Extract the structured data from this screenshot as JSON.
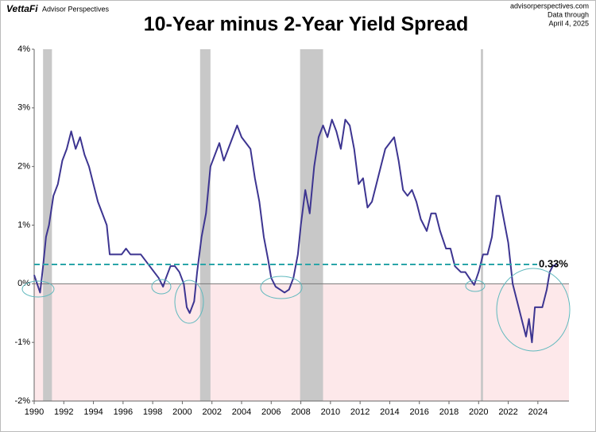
{
  "header": {
    "logo": "VettaFi",
    "brand": "Advisor Perspectives",
    "site": "advisorperspectives.com",
    "note": "Data through",
    "date": "April 4, 2025"
  },
  "chart_data": {
    "type": "line",
    "title": "10-Year minus 2-Year Yield Spread",
    "color": "#3d3591",
    "xlim": [
      1990,
      2026.1
    ],
    "ylim": [
      -2,
      4
    ],
    "xticks": [
      1990,
      1992,
      1994,
      1996,
      1998,
      2000,
      2002,
      2004,
      2006,
      2008,
      2010,
      2012,
      2014,
      2016,
      2018,
      2020,
      2022,
      2024
    ],
    "yticks": [
      {
        "value": -2,
        "label": "-2%"
      },
      {
        "value": -1,
        "label": "-1%"
      },
      {
        "value": 0,
        "label": "0%"
      },
      {
        "value": 1,
        "label": "1%"
      },
      {
        "value": 2,
        "label": "2%"
      },
      {
        "value": 3,
        "label": "3%"
      },
      {
        "value": 4,
        "label": "4%"
      }
    ],
    "negative_fill": "#fde8ea",
    "recession_color": "#c8c8c8",
    "recessions": [
      [
        1990.6,
        1991.2
      ],
      [
        2001.2,
        2001.9
      ],
      [
        2007.95,
        2009.5
      ],
      [
        2020.15,
        2020.3
      ]
    ],
    "reference": {
      "value": 0.33,
      "label": "0.33%",
      "color": "#2aa5a8"
    },
    "x": [
      1990.0,
      1990.2,
      1990.4,
      1990.6,
      1990.8,
      1991.0,
      1991.3,
      1991.6,
      1991.9,
      1992.2,
      1992.5,
      1992.8,
      1993.1,
      1993.4,
      1993.7,
      1994.0,
      1994.3,
      1994.6,
      1994.9,
      1995.1,
      1995.3,
      1995.6,
      1995.9,
      1996.2,
      1996.5,
      1996.8,
      1997.2,
      1997.5,
      1997.8,
      1998.1,
      1998.4,
      1998.7,
      1998.9,
      1999.2,
      1999.5,
      1999.8,
      2000.1,
      2000.3,
      2000.5,
      2000.8,
      2001.0,
      2001.3,
      2001.6,
      2001.9,
      2002.2,
      2002.5,
      2002.8,
      2003.1,
      2003.4,
      2003.7,
      2004.0,
      2004.3,
      2004.6,
      2004.9,
      2005.2,
      2005.5,
      2005.8,
      2006.0,
      2006.3,
      2006.6,
      2006.9,
      2007.2,
      2007.5,
      2007.8,
      2008.0,
      2008.3,
      2008.6,
      2008.9,
      2009.2,
      2009.5,
      2009.8,
      2010.1,
      2010.4,
      2010.7,
      2011.0,
      2011.3,
      2011.6,
      2011.9,
      2012.2,
      2012.5,
      2012.8,
      2013.1,
      2013.4,
      2013.7,
      2014.0,
      2014.3,
      2014.6,
      2014.9,
      2015.2,
      2015.5,
      2015.8,
      2016.1,
      2016.5,
      2016.8,
      2017.1,
      2017.4,
      2017.8,
      2018.1,
      2018.4,
      2018.8,
      2019.1,
      2019.5,
      2019.7,
      2020.0,
      2020.3,
      2020.6,
      2020.9,
      2021.2,
      2021.4,
      2021.7,
      2022.0,
      2022.3,
      2022.6,
      2022.9,
      2023.2,
      2023.4,
      2023.6,
      2023.8,
      2024.0,
      2024.3,
      2024.6,
      2024.8,
      2025.0,
      2025.26
    ],
    "values": [
      0.15,
      0.0,
      -0.15,
      0.3,
      0.8,
      1.0,
      1.5,
      1.7,
      2.1,
      2.3,
      2.6,
      2.3,
      2.5,
      2.2,
      2.0,
      1.7,
      1.4,
      1.2,
      1.0,
      0.5,
      0.5,
      0.5,
      0.5,
      0.6,
      0.5,
      0.5,
      0.5,
      0.4,
      0.3,
      0.2,
      0.1,
      -0.05,
      0.1,
      0.3,
      0.3,
      0.2,
      0.0,
      -0.4,
      -0.5,
      -0.3,
      0.2,
      0.8,
      1.2,
      2.0,
      2.2,
      2.4,
      2.1,
      2.3,
      2.5,
      2.7,
      2.5,
      2.4,
      2.3,
      1.8,
      1.4,
      0.8,
      0.4,
      0.1,
      -0.05,
      -0.1,
      -0.15,
      -0.1,
      0.1,
      0.5,
      1.0,
      1.6,
      1.2,
      2.0,
      2.5,
      2.7,
      2.5,
      2.8,
      2.6,
      2.3,
      2.8,
      2.7,
      2.3,
      1.7,
      1.8,
      1.3,
      1.4,
      1.7,
      2.0,
      2.3,
      2.4,
      2.5,
      2.1,
      1.6,
      1.5,
      1.6,
      1.4,
      1.1,
      0.9,
      1.2,
      1.2,
      0.9,
      0.6,
      0.6,
      0.3,
      0.2,
      0.2,
      0.05,
      -0.02,
      0.2,
      0.5,
      0.5,
      0.8,
      1.5,
      1.5,
      1.1,
      0.7,
      0.0,
      -0.3,
      -0.6,
      -0.9,
      -0.6,
      -1.0,
      -0.4,
      -0.4,
      -0.4,
      -0.1,
      0.2,
      0.3,
      0.33
    ]
  }
}
